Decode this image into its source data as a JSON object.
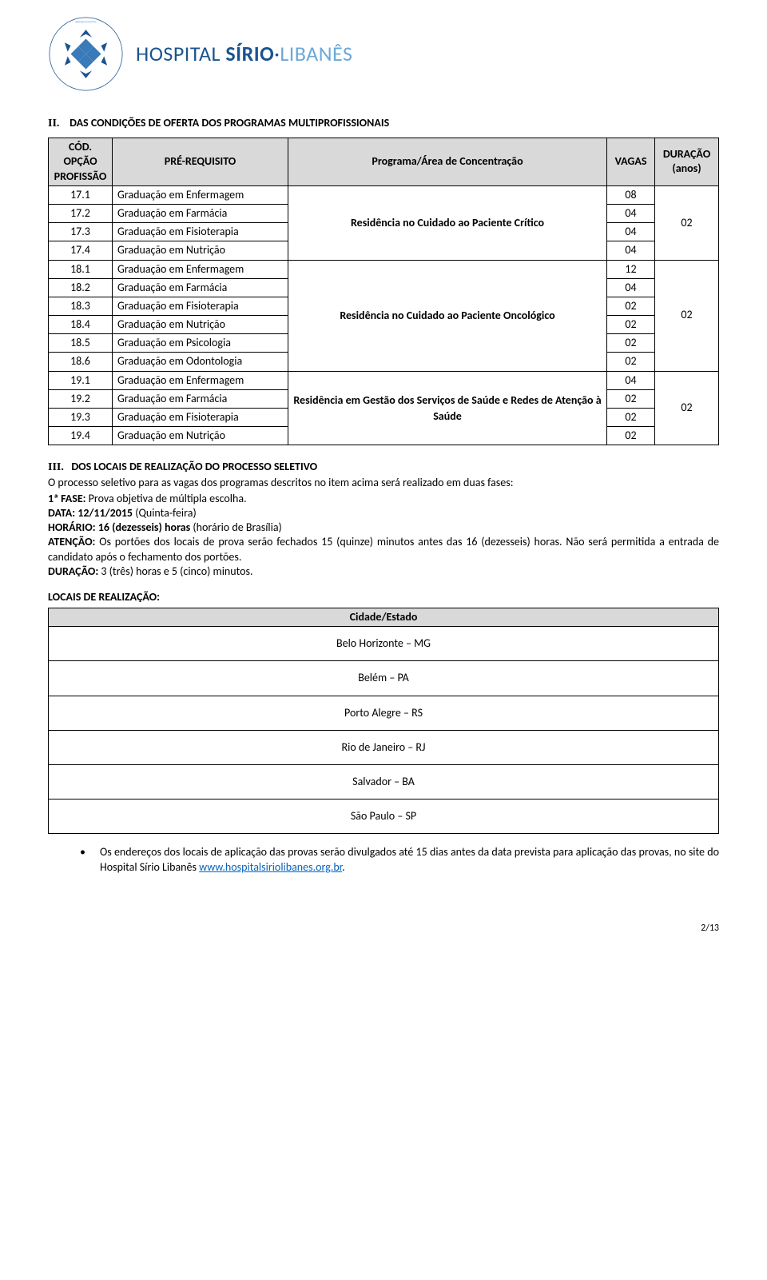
{
  "logo": {
    "hospital": "HOSPITAL",
    "sirio": "SÍRIO",
    "dot": "·",
    "libanes": "LIBANÊS",
    "accent": "#1a5490",
    "light_accent": "#6ba8d8"
  },
  "section2": {
    "roman": "II.",
    "title": "DAS CONDIÇÕES DE OFERTA DOS PROGRAMAS MULTIPROFISSIONAIS"
  },
  "table1": {
    "headers": {
      "cod": "CÓD. OPÇÃO PROFISSÃO",
      "pre": "PRÉ-REQUISITO",
      "area": "Programa/Área de Concentração",
      "vagas": "VAGAS",
      "dur": "DURAÇÃO (anos)"
    },
    "groups": [
      {
        "area": "Residência no Cuidado ao Paciente Crítico",
        "dur": "02",
        "rows": [
          {
            "cod": "17.1",
            "pre": "Graduação em Enfermagem",
            "vagas": "08"
          },
          {
            "cod": "17.2",
            "pre": "Graduação em Farmácia",
            "vagas": "04"
          },
          {
            "cod": "17.3",
            "pre": "Graduação em Fisioterapia",
            "vagas": "04"
          },
          {
            "cod": "17.4",
            "pre": "Graduação em Nutrição",
            "vagas": "04"
          }
        ]
      },
      {
        "area": "Residência no Cuidado ao Paciente Oncológico",
        "dur": "02",
        "rows": [
          {
            "cod": "18.1",
            "pre": "Graduação em Enfermagem",
            "vagas": "12"
          },
          {
            "cod": "18.2",
            "pre": "Graduação em Farmácia",
            "vagas": "04"
          },
          {
            "cod": "18.3",
            "pre": "Graduação em Fisioterapia",
            "vagas": "02"
          },
          {
            "cod": "18.4",
            "pre": "Graduação em Nutrição",
            "vagas": "02"
          },
          {
            "cod": "18.5",
            "pre": "Graduação em Psicologia",
            "vagas": "02"
          },
          {
            "cod": "18.6",
            "pre": "Graduação em Odontologia",
            "vagas": "02"
          }
        ]
      },
      {
        "area": "Residência em Gestão dos Serviços de Saúde e Redes de Atenção à Saúde",
        "dur": "02",
        "rows": [
          {
            "cod": "19.1",
            "pre": "Graduação em Enfermagem",
            "vagas": "04"
          },
          {
            "cod": "19.2",
            "pre": "Graduação em Farmácia",
            "vagas": "02"
          },
          {
            "cod": "19.3",
            "pre": "Graduação em Fisioterapia",
            "vagas": "02"
          },
          {
            "cod": "19.4",
            "pre": "Graduação em Nutrição",
            "vagas": "02"
          }
        ]
      }
    ]
  },
  "section3": {
    "roman": "III.",
    "title": "DOS LOCAIS DE REALIZAÇÃO DO PROCESSO SELETIVO",
    "intro": "O processo seletivo para as vagas dos programas descritos no item acima será realizado em duas fases:",
    "fase1_label": "1ª FASE:",
    "fase1_text": " Prova objetiva de múltipla escolha.",
    "data_label": "DATA: 12/11/2015",
    "data_text": " (Quinta-feira)",
    "horario_label": "HORÁRIO: 16 (dezesseis) horas",
    "horario_text": " (horário de Brasília)",
    "atencao_label": "ATENÇÃO:",
    "atencao_text": " Os portões dos locais de prova serão fechados 15 (quinze) minutos antes das 16 (dezesseis) horas. Não será permitida a entrada de candidato após o fechamento dos portões.",
    "duracao_label": "DURAÇÃO:",
    "duracao_text": " 3 (três) horas e 5 (cinco) minutos."
  },
  "locations": {
    "header": "LOCAIS DE REALIZAÇÃO:",
    "col": "Cidade/Estado",
    "rows": [
      "Belo Horizonte – MG",
      "Belém – PA",
      "Porto Alegre – RS",
      "Rio de Janeiro – RJ",
      "Salvador – BA",
      "São Paulo – SP"
    ]
  },
  "bullet": {
    "text_before": "Os endereços dos locais de aplicação das provas serão divulgados até 15 dias antes da data prevista para aplicação das provas, no site do Hospital Sírio Libanês ",
    "link": "www.hospitalsiriolibanes.org.br",
    "text_after": "."
  },
  "footer": "2/13"
}
